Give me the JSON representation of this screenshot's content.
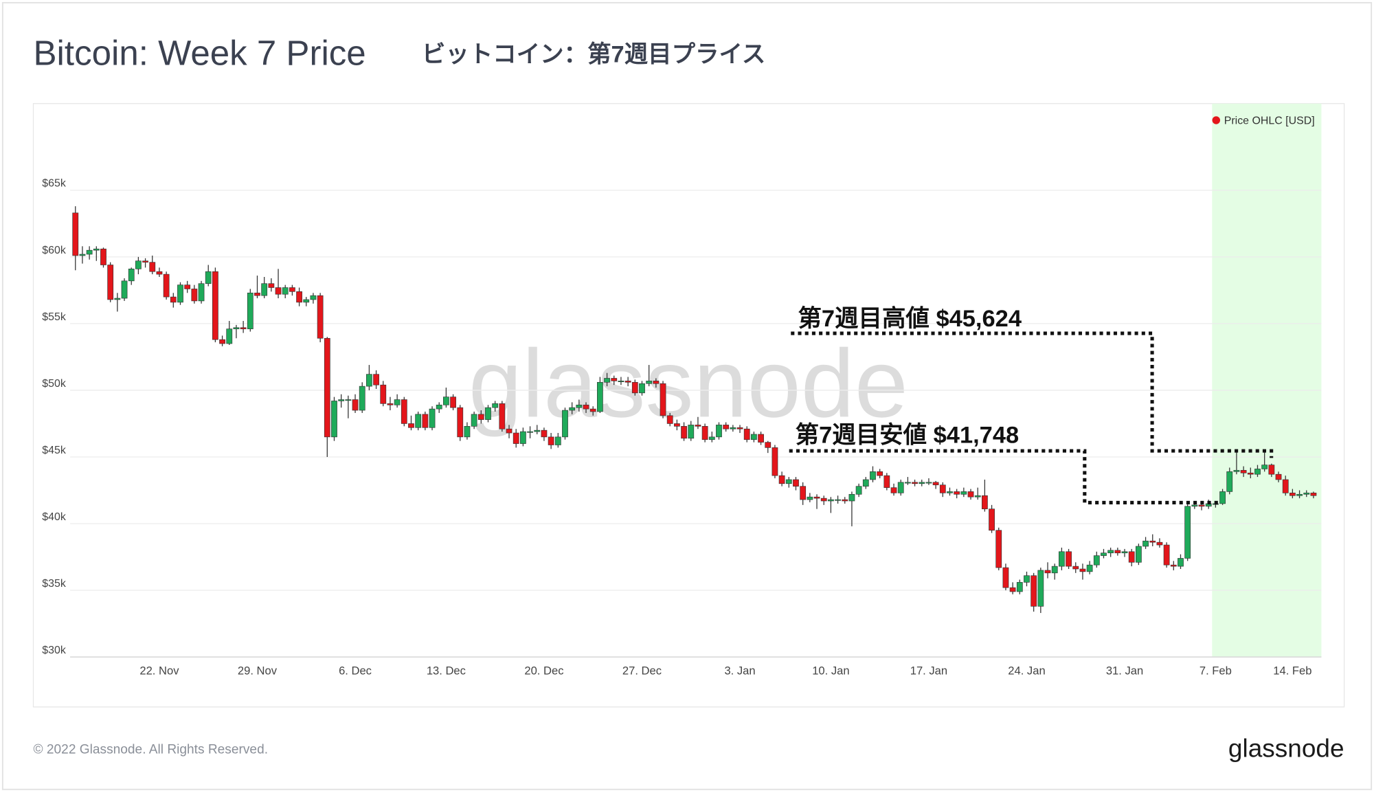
{
  "chart_data": {
    "type": "candlestick",
    "title": "Bitcoin: Week 7 Price",
    "subtitle": "ビットコイン：第7週目プライス",
    "legend_label": "Price OHLC [USD]",
    "watermark": "glassnode",
    "annotations": [
      {
        "text": "第7週目高値 $45,624"
      },
      {
        "text": "第7週目安値 $41,748"
      }
    ],
    "up_color": "#1faa5a",
    "down_color": "#e3161b",
    "highlight_color": "#e4fde4",
    "highlight_from": "7. Feb",
    "grid": true,
    "ylim": [
      30000,
      71500
    ],
    "yticks": [
      {
        "value": 30000,
        "label": "$30k"
      },
      {
        "value": 35000,
        "label": "$35k"
      },
      {
        "value": 40000,
        "label": "$40k"
      },
      {
        "value": 45000,
        "label": "$45k"
      },
      {
        "value": 50000,
        "label": "$50k"
      },
      {
        "value": 55000,
        "label": "$55k"
      },
      {
        "value": 60000,
        "label": "$60k"
      },
      {
        "value": 65000,
        "label": "$65k"
      }
    ],
    "categories": [
      null,
      null,
      null,
      null,
      null,
      null,
      null,
      null,
      null,
      null,
      null,
      null,
      "22. Nov",
      null,
      null,
      null,
      null,
      null,
      null,
      null,
      null,
      null,
      null,
      null,
      null,
      null,
      "29. Nov",
      null,
      null,
      null,
      null,
      null,
      null,
      null,
      null,
      null,
      null,
      null,
      null,
      null,
      "6. Dec",
      null,
      null,
      null,
      null,
      null,
      null,
      null,
      null,
      null,
      null,
      null,
      null,
      "13. Dec",
      null,
      null,
      null,
      null,
      null,
      null,
      null,
      null,
      null,
      null,
      null,
      null,
      null,
      "20. Dec",
      null,
      null,
      null,
      null,
      null,
      null,
      null,
      null,
      null,
      null,
      null,
      null,
      null,
      "27. Dec",
      null,
      null,
      null,
      null,
      null,
      null,
      null,
      null,
      null,
      null,
      null,
      null,
      null,
      "3. Jan",
      null,
      null,
      null,
      null,
      null,
      null,
      null,
      null,
      null,
      null,
      null,
      null,
      "10. Jan",
      null,
      null,
      null,
      null,
      null,
      null,
      null,
      null,
      null,
      null,
      null,
      null,
      null,
      "17. Jan",
      null,
      null,
      null,
      null,
      null,
      null,
      null,
      null,
      null,
      null,
      null,
      null,
      null,
      "24. Jan",
      null,
      null,
      null,
      null,
      null,
      null,
      null,
      null,
      null,
      null,
      null,
      null,
      null,
      "31. Jan",
      null,
      null,
      null,
      null,
      null,
      null,
      null,
      null,
      null,
      null,
      null,
      null,
      "7. Feb",
      null,
      null,
      null,
      null,
      null,
      null,
      null,
      null,
      null,
      null,
      "14. Feb",
      null,
      null,
      null
    ],
    "ohlc": [
      [
        63300,
        63800,
        59000,
        60100
      ],
      [
        60100,
        60800,
        59500,
        60200
      ],
      [
        60200,
        60800,
        59800,
        60500
      ],
      [
        60500,
        60800,
        59700,
        60600
      ],
      [
        60600,
        60700,
        59200,
        59400
      ],
      [
        59400,
        59600,
        56600,
        56800
      ],
      [
        56800,
        57300,
        55900,
        56900
      ],
      [
        56900,
        58400,
        56700,
        58200
      ],
      [
        58200,
        59200,
        57900,
        59100
      ],
      [
        59100,
        60000,
        58700,
        59700
      ],
      [
        59700,
        59900,
        59200,
        59600
      ],
      [
        59600,
        60100,
        58700,
        58900
      ],
      [
        58900,
        59200,
        58500,
        58700
      ],
      [
        58700,
        58900,
        56800,
        57000
      ],
      [
        57000,
        57300,
        56200,
        56600
      ],
      [
        56600,
        58100,
        56400,
        57900
      ],
      [
        57900,
        58200,
        57300,
        57600
      ],
      [
        57600,
        57900,
        56500,
        56700
      ],
      [
        56700,
        58200,
        56500,
        58000
      ],
      [
        58000,
        59400,
        57800,
        58900
      ],
      [
        58900,
        59200,
        53600,
        53800
      ],
      [
        53800,
        54100,
        53300,
        53500
      ],
      [
        53500,
        55200,
        53400,
        54600
      ],
      [
        54600,
        54900,
        53900,
        54700
      ],
      [
        54700,
        55200,
        54300,
        54600
      ],
      [
        54600,
        57600,
        54400,
        57300
      ],
      [
        57300,
        58600,
        56900,
        57100
      ],
      [
        57100,
        58500,
        56900,
        58000
      ],
      [
        58000,
        58400,
        57400,
        57700
      ],
      [
        57700,
        59100,
        56900,
        57200
      ],
      [
        57200,
        57900,
        56900,
        57700
      ],
      [
        57700,
        57900,
        57100,
        57400
      ],
      [
        57400,
        57700,
        56300,
        56600
      ],
      [
        56600,
        57000,
        56300,
        56800
      ],
      [
        56800,
        57300,
        56500,
        57100
      ],
      [
        57100,
        57300,
        53600,
        53900
      ],
      [
        53900,
        54000,
        45000,
        46500
      ],
      [
        46500,
        49500,
        46200,
        49200
      ],
      [
        49200,
        49700,
        48700,
        49300
      ],
      [
        49300,
        49600,
        47900,
        49300
      ],
      [
        49300,
        49700,
        48300,
        48500
      ],
      [
        48500,
        50600,
        48300,
        50300
      ],
      [
        50300,
        51900,
        50000,
        51200
      ],
      [
        51200,
        51500,
        50100,
        50400
      ],
      [
        50400,
        50700,
        48800,
        49000
      ],
      [
        49000,
        49500,
        48500,
        48900
      ],
      [
        48900,
        49700,
        48700,
        49300
      ],
      [
        49300,
        49500,
        47300,
        47500
      ],
      [
        47500,
        48100,
        47000,
        47200
      ],
      [
        47200,
        48400,
        47000,
        48200
      ],
      [
        48200,
        48400,
        47000,
        47200
      ],
      [
        47200,
        48800,
        47000,
        48600
      ],
      [
        48600,
        49100,
        48300,
        48900
      ],
      [
        48900,
        50200,
        48700,
        49500
      ],
      [
        49500,
        49700,
        48500,
        48700
      ],
      [
        48700,
        48900,
        46200,
        46500
      ],
      [
        46500,
        47600,
        46300,
        47300
      ],
      [
        47300,
        48400,
        47100,
        48200
      ],
      [
        48200,
        48500,
        47500,
        47800
      ],
      [
        47800,
        48900,
        47600,
        48700
      ],
      [
        48700,
        49200,
        48400,
        49000
      ],
      [
        49000,
        49200,
        46900,
        47100
      ],
      [
        47100,
        47400,
        46400,
        46800
      ],
      [
        46800,
        47100,
        45700,
        46000
      ],
      [
        46000,
        47200,
        45800,
        46900
      ],
      [
        46900,
        47300,
        46400,
        46900
      ],
      [
        46900,
        47400,
        46700,
        47000
      ],
      [
        47000,
        47200,
        46200,
        46500
      ],
      [
        46500,
        46800,
        45600,
        45900
      ],
      [
        45900,
        46800,
        45700,
        46500
      ],
      [
        46500,
        48700,
        46300,
        48500
      ],
      [
        48500,
        49100,
        48200,
        48700
      ],
      [
        48700,
        49300,
        48400,
        48900
      ],
      [
        48900,
        49100,
        48300,
        48600
      ],
      [
        48600,
        48800,
        48100,
        48400
      ],
      [
        48400,
        51000,
        48300,
        50600
      ],
      [
        50600,
        51300,
        50300,
        50900
      ],
      [
        50900,
        51100,
        50400,
        50700
      ],
      [
        50700,
        51000,
        50400,
        50700
      ],
      [
        50700,
        51000,
        50300,
        50600
      ],
      [
        50600,
        50800,
        49600,
        49800
      ],
      [
        49800,
        50700,
        49600,
        50500
      ],
      [
        50500,
        51900,
        50300,
        50700
      ],
      [
        50700,
        50900,
        50200,
        50500
      ],
      [
        50500,
        50700,
        47900,
        48100
      ],
      [
        48100,
        48300,
        47300,
        47500
      ],
      [
        47500,
        47800,
        47000,
        47300
      ],
      [
        47300,
        47600,
        46200,
        46400
      ],
      [
        46400,
        47700,
        46200,
        47400
      ],
      [
        47400,
        48000,
        47100,
        47300
      ],
      [
        47300,
        47500,
        46100,
        46300
      ],
      [
        46300,
        46900,
        46100,
        46500
      ],
      [
        46500,
        47600,
        46300,
        47400
      ],
      [
        47400,
        47600,
        46900,
        47100
      ],
      [
        47100,
        47400,
        46900,
        47200
      ],
      [
        47200,
        47400,
        46800,
        47100
      ],
      [
        47100,
        47300,
        46100,
        46300
      ],
      [
        46300,
        46900,
        46100,
        46700
      ],
      [
        46700,
        46900,
        45900,
        46100
      ],
      [
        46100,
        46200,
        45300,
        45700
      ],
      [
        45700,
        45900,
        43400,
        43600
      ],
      [
        43600,
        43900,
        42800,
        43000
      ],
      [
        43000,
        43500,
        42700,
        43300
      ],
      [
        43300,
        43500,
        42500,
        42800
      ],
      [
        42800,
        43100,
        41400,
        41800
      ],
      [
        41800,
        42300,
        41600,
        42000
      ],
      [
        42000,
        42200,
        41100,
        41900
      ],
      [
        41900,
        42100,
        41400,
        41700
      ],
      [
        41700,
        42000,
        40800,
        41800
      ],
      [
        41800,
        42100,
        41500,
        41800
      ],
      [
        41800,
        42000,
        41500,
        41700
      ],
      [
        41700,
        42400,
        39800,
        42200
      ],
      [
        42200,
        43000,
        42000,
        42800
      ],
      [
        42800,
        43500,
        42600,
        43300
      ],
      [
        43300,
        44300,
        43100,
        43900
      ],
      [
        43900,
        44100,
        43400,
        43600
      ],
      [
        43600,
        43800,
        42500,
        42700
      ],
      [
        42700,
        43000,
        42100,
        42300
      ],
      [
        42300,
        43300,
        42100,
        43100
      ],
      [
        43100,
        43500,
        42900,
        43100
      ],
      [
        43100,
        43300,
        42800,
        43000
      ],
      [
        43000,
        43300,
        42800,
        43100
      ],
      [
        43100,
        43400,
        42900,
        43100
      ],
      [
        43100,
        43200,
        42600,
        42900
      ],
      [
        42900,
        43100,
        42000,
        42300
      ],
      [
        42300,
        42700,
        42100,
        42400
      ],
      [
        42400,
        42600,
        41900,
        42200
      ],
      [
        42200,
        42700,
        42000,
        42400
      ],
      [
        42400,
        42600,
        41800,
        42000
      ],
      [
        42000,
        42700,
        41800,
        42100
      ],
      [
        42100,
        43300,
        40900,
        41100
      ],
      [
        41100,
        41400,
        39300,
        39500
      ],
      [
        39500,
        39700,
        36500,
        36700
      ],
      [
        36700,
        37000,
        35000,
        35200
      ],
      [
        35200,
        35600,
        34700,
        34900
      ],
      [
        34900,
        35800,
        34700,
        35600
      ],
      [
        35600,
        36400,
        35300,
        36100
      ],
      [
        36100,
        36300,
        33400,
        33800
      ],
      [
        33800,
        36700,
        33300,
        36500
      ],
      [
        36500,
        37100,
        35900,
        36300
      ],
      [
        36300,
        37000,
        35800,
        36800
      ],
      [
        36800,
        38200,
        36500,
        37900
      ],
      [
        37900,
        38100,
        36600,
        36800
      ],
      [
        36800,
        37100,
        36300,
        36600
      ],
      [
        36600,
        37000,
        35800,
        36400
      ],
      [
        36400,
        37200,
        36200,
        36900
      ],
      [
        36900,
        37900,
        36700,
        37600
      ],
      [
        37600,
        38100,
        37400,
        37800
      ],
      [
        37800,
        38200,
        37500,
        38000
      ],
      [
        38000,
        38200,
        37600,
        37800
      ],
      [
        37800,
        38100,
        37500,
        37900
      ],
      [
        37900,
        38100,
        36800,
        37100
      ],
      [
        37100,
        38500,
        36900,
        38300
      ],
      [
        38300,
        39000,
        38100,
        38700
      ],
      [
        38700,
        39200,
        38300,
        38600
      ],
      [
        38600,
        38900,
        38200,
        38400
      ],
      [
        38400,
        38600,
        36700,
        36900
      ],
      [
        36900,
        37200,
        36500,
        36800
      ],
      [
        36800,
        37700,
        36600,
        37400
      ],
      [
        37400,
        41600,
        37200,
        41300
      ],
      [
        41300,
        41700,
        41100,
        41400
      ],
      [
        41400,
        41600,
        41000,
        41300
      ],
      [
        41300,
        41800,
        41100,
        41500
      ],
      [
        41500,
        41700,
        41200,
        41500
      ],
      [
        41500,
        42600,
        41400,
        42400
      ],
      [
        42400,
        44200,
        42200,
        43900
      ],
      [
        43900,
        45400,
        43700,
        44000
      ],
      [
        44000,
        44300,
        43500,
        43800
      ],
      [
        43800,
        44200,
        43400,
        43700
      ],
      [
        43700,
        44400,
        43500,
        44100
      ],
      [
        44100,
        45500,
        43900,
        44400
      ],
      [
        44400,
        44500,
        43500,
        43700
      ],
      [
        43700,
        43900,
        43100,
        43300
      ],
      [
        43300,
        43600,
        42100,
        42300
      ],
      [
        42300,
        42600,
        41900,
        42100
      ],
      [
        42100,
        42500,
        41900,
        42200
      ],
      [
        42200,
        42500,
        42000,
        42300
      ],
      [
        42300,
        42400,
        41900,
        42100
      ]
    ]
  },
  "footer": {
    "copyright": "© 2022 Glassnode. All Rights Reserved.",
    "logo": "glassnode"
  }
}
